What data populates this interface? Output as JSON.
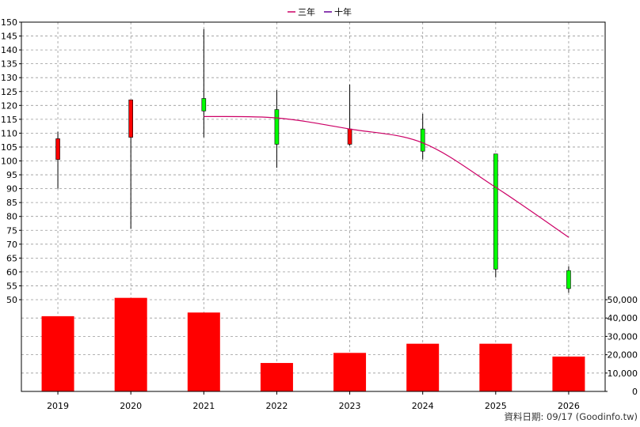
{
  "legend": [
    {
      "label": "三年",
      "color": "#cc0066"
    },
    {
      "label": "十年",
      "color": "#660099"
    }
  ],
  "footer": "資料日期: 09/17  (Goodinfo.tw)",
  "colors": {
    "up_candle": "#ff0000",
    "down_candle": "#00ff00",
    "volume_bar": "#ff0000",
    "three_year_line": "#cc0066",
    "grid": "#999999"
  },
  "chart_data": {
    "type": "candlestick",
    "categories": [
      "2019",
      "2020",
      "2021",
      "2022",
      "2023",
      "2024",
      "2025",
      "2026"
    ],
    "price_axis": {
      "min": 50,
      "max": 150,
      "ticks": [
        50,
        55,
        60,
        65,
        70,
        75,
        80,
        85,
        90,
        95,
        100,
        105,
        110,
        115,
        120,
        125,
        130,
        135,
        140,
        145,
        150
      ]
    },
    "volume_axis": {
      "min": 0,
      "max": 50000,
      "ticks": [
        0,
        10000,
        20000,
        30000,
        40000,
        50000
      ],
      "tick_labels": [
        "0",
        "10,000",
        "20,000",
        "30,000",
        "40,000",
        "50,000"
      ]
    },
    "candles": [
      {
        "year": "2019",
        "open": 100.5,
        "high": 110.5,
        "low": 90,
        "close": 108,
        "direction": "up"
      },
      {
        "year": "2020",
        "open": 108.5,
        "high": 122,
        "low": 75.5,
        "close": 122,
        "direction": "up"
      },
      {
        "year": "2021",
        "open": 122.5,
        "high": 147.5,
        "low": 108.5,
        "close": 118,
        "direction": "down"
      },
      {
        "year": "2022",
        "open": 118.5,
        "high": 125.5,
        "low": 97.5,
        "close": 106,
        "direction": "down"
      },
      {
        "year": "2023",
        "open": 106,
        "high": 127.5,
        "low": 105.5,
        "close": 111.5,
        "direction": "up"
      },
      {
        "year": "2024",
        "open": 111.5,
        "high": 117,
        "low": 100.5,
        "close": 103.5,
        "direction": "down"
      },
      {
        "year": "2025",
        "open": 102.5,
        "high": 102.5,
        "low": 58,
        "close": 61,
        "direction": "down"
      },
      {
        "year": "2026",
        "open": 60.5,
        "high": 62,
        "low": 52.5,
        "close": 54,
        "direction": "down"
      }
    ],
    "three_year_line": {
      "name": "三年",
      "x": [
        "2021",
        "2022",
        "2023",
        "2024",
        "2025",
        "2026"
      ],
      "values": [
        116,
        115.5,
        111.5,
        106.5,
        90.5,
        72.5
      ]
    },
    "volume": [
      41000,
      51000,
      43000,
      15500,
      21000,
      26000,
      26000,
      19000
    ],
    "grid": true,
    "legend_position": "top-center"
  }
}
